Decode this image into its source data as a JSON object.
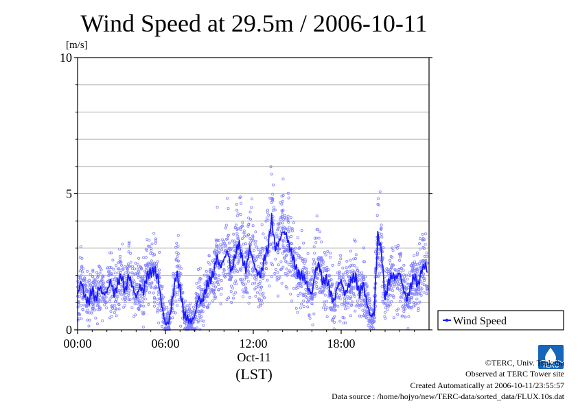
{
  "chart_data": {
    "type": "line",
    "title": "Wind Speed at 29.5m / 2006-10-11",
    "ylabel": "[m/s]",
    "xlabel": "(LST)",
    "x_date_label": "Oct-11",
    "ylim": [
      0,
      10
    ],
    "xlim": [
      0,
      24
    ],
    "y_ticks": [
      {
        "value": 0,
        "label": "0"
      },
      {
        "value": 5,
        "label": "5"
      },
      {
        "value": 10,
        "label": "10"
      }
    ],
    "y_gridlines": [
      1,
      2,
      3,
      4,
      5,
      6,
      7,
      8,
      9
    ],
    "x_ticks": [
      {
        "value": 0,
        "label": "00:00"
      },
      {
        "value": 6,
        "label": "06:00"
      },
      {
        "value": 12,
        "label": "12:00"
      },
      {
        "value": 18,
        "label": "18:00"
      }
    ],
    "grid": true,
    "legend_position": "right",
    "series": [
      {
        "name": "Wind Speed",
        "color": "#1a1aff",
        "scatter_color": "#8080ff",
        "x": [
          0,
          0.25,
          0.5,
          0.75,
          1,
          1.25,
          1.5,
          1.75,
          2,
          2.25,
          2.5,
          2.75,
          3,
          3.25,
          3.5,
          3.75,
          4,
          4.25,
          4.5,
          4.75,
          5,
          5.25,
          5.5,
          5.75,
          6,
          6.25,
          6.5,
          6.75,
          7,
          7.25,
          7.5,
          7.75,
          8,
          8.25,
          8.5,
          8.75,
          9,
          9.25,
          9.5,
          9.75,
          10,
          10.25,
          10.5,
          10.75,
          11,
          11.25,
          11.5,
          11.75,
          12,
          12.25,
          12.5,
          12.75,
          13,
          13.25,
          13.5,
          13.75,
          14,
          14.25,
          14.5,
          14.75,
          15,
          15.25,
          15.5,
          15.75,
          16,
          16.25,
          16.5,
          16.75,
          17,
          17.25,
          17.5,
          17.75,
          18,
          18.25,
          18.5,
          18.75,
          19,
          19.25,
          19.5,
          19.75,
          20,
          20.25,
          20.5,
          20.75,
          21,
          21.25,
          21.5,
          21.75,
          22,
          22.25,
          22.5,
          22.75,
          23,
          23.25,
          23.5,
          23.75,
          24
        ],
        "values": [
          1.3,
          1.8,
          1.2,
          1.0,
          1.5,
          1.1,
          1.6,
          1.3,
          1.4,
          1.8,
          1.3,
          1.7,
          2.0,
          1.4,
          2.0,
          1.6,
          1.2,
          1.6,
          1.4,
          2.0,
          2.1,
          2.2,
          1.9,
          0.9,
          0.2,
          0.3,
          1.2,
          2.1,
          1.5,
          0.6,
          0.4,
          0.3,
          0.5,
          1.2,
          1.0,
          1.5,
          1.8,
          2.0,
          2.7,
          2.3,
          2.6,
          2.9,
          2.1,
          2.7,
          3.2,
          2.6,
          2.2,
          3.0,
          2.5,
          2.1,
          2.0,
          2.6,
          3.0,
          4.1,
          3.0,
          3.2,
          3.6,
          3.5,
          3.0,
          2.6,
          2.1,
          2.0,
          1.9,
          1.5,
          1.3,
          2.2,
          2.4,
          1.7,
          1.9,
          1.4,
          1.0,
          1.6,
          1.8,
          1.3,
          1.6,
          1.9,
          1.9,
          1.3,
          1.7,
          1.0,
          0.5,
          0.6,
          3.5,
          2.9,
          1.1,
          1.8,
          2.0,
          1.9,
          2.1,
          1.5,
          1.1,
          1.6,
          2.0,
          1.6,
          2.2,
          2.4,
          1.9
        ]
      }
    ]
  },
  "footer": {
    "copyright": "©TERC, Univ. Tsukuba",
    "observed": "Observed at TERC Tower site",
    "created": "Created Automatically at 2006-10-11/23:55:57",
    "source": "Data source : /home/hojyo/new/TERC-data/sorted_data/FLUX.10s.dat",
    "logo_text": "TERC"
  },
  "colors": {
    "line": "#1a1aff",
    "scatter": "#8080ff",
    "grid": "#b0b0b0",
    "logo": "#1466b8"
  },
  "icons": {
    "logo": "terc-logo-icon"
  }
}
